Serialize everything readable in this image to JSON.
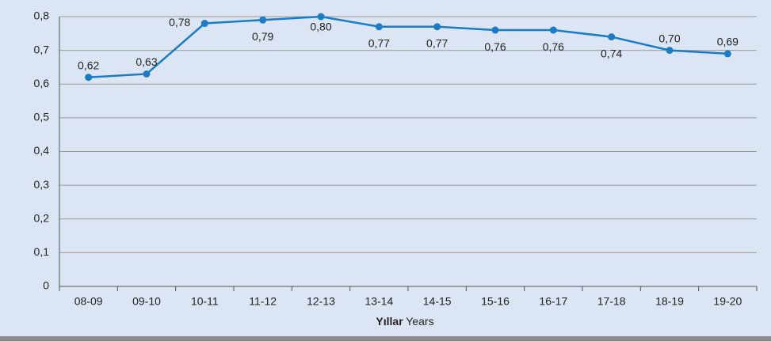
{
  "chart_data": {
    "type": "line",
    "categories": [
      "08-09",
      "09-10",
      "10-11",
      "11-12",
      "12-13",
      "13-14",
      "14-15",
      "15-16",
      "16-17",
      "17-18",
      "18-19",
      "19-20"
    ],
    "values": [
      0.62,
      0.63,
      0.78,
      0.79,
      0.8,
      0.77,
      0.77,
      0.76,
      0.76,
      0.74,
      0.7,
      0.69
    ],
    "value_labels": [
      "0,62",
      "0,63",
      "0,78",
      "0,79",
      "0,80",
      "0,77",
      "0,77",
      "0,76",
      "0,76",
      "0,74",
      "0,70",
      "0,69"
    ],
    "color": "#1a7cc4",
    "ylim": [
      0,
      0.8
    ],
    "yticks": [
      0,
      {
        "value": 0.1,
        "label": "0,1"
      },
      {
        "value": 0.2,
        "label": "0,2"
      },
      {
        "value": 0.3,
        "label": "0,3"
      },
      {
        "value": 0.4,
        "label": "0,4"
      },
      {
        "value": 0.5,
        "label": "0,5"
      },
      {
        "value": 0.6,
        "label": "0,6"
      },
      {
        "value": 0.7,
        "label": "0,7"
      },
      {
        "value": 0.8,
        "label": "0,8"
      }
    ],
    "grid": true,
    "xlabel": "Yıllar",
    "xlabel_en": "Years"
  }
}
